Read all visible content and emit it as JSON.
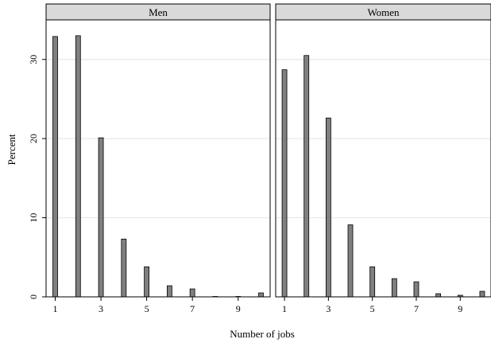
{
  "chart_data": {
    "type": "bar",
    "xlabel": "Number of jobs",
    "ylabel": "Percent",
    "ylim": [
      0,
      35
    ],
    "xlim": [
      0.6,
      10.4
    ],
    "x": [
      1,
      2,
      3,
      4,
      5,
      6,
      7,
      8,
      9,
      10
    ],
    "x_ticks": [
      "1",
      "3",
      "5",
      "7",
      "9"
    ],
    "y_ticks": [
      "0",
      "10",
      "20",
      "30"
    ],
    "grid": true,
    "colors": {
      "bar_fill": "#808080",
      "bar_stroke": "#000000",
      "strip_fill": "#d9d9d9",
      "grid": "#e4e4e4"
    },
    "panels": [
      {
        "name": "Men",
        "values": [
          32.9,
          33.0,
          20.1,
          7.3,
          3.8,
          1.4,
          1.0,
          0.05,
          0.05,
          0.5
        ]
      },
      {
        "name": "Women",
        "values": [
          28.7,
          30.5,
          22.6,
          9.1,
          3.8,
          2.3,
          1.9,
          0.4,
          0.2,
          0.7
        ]
      }
    ]
  }
}
